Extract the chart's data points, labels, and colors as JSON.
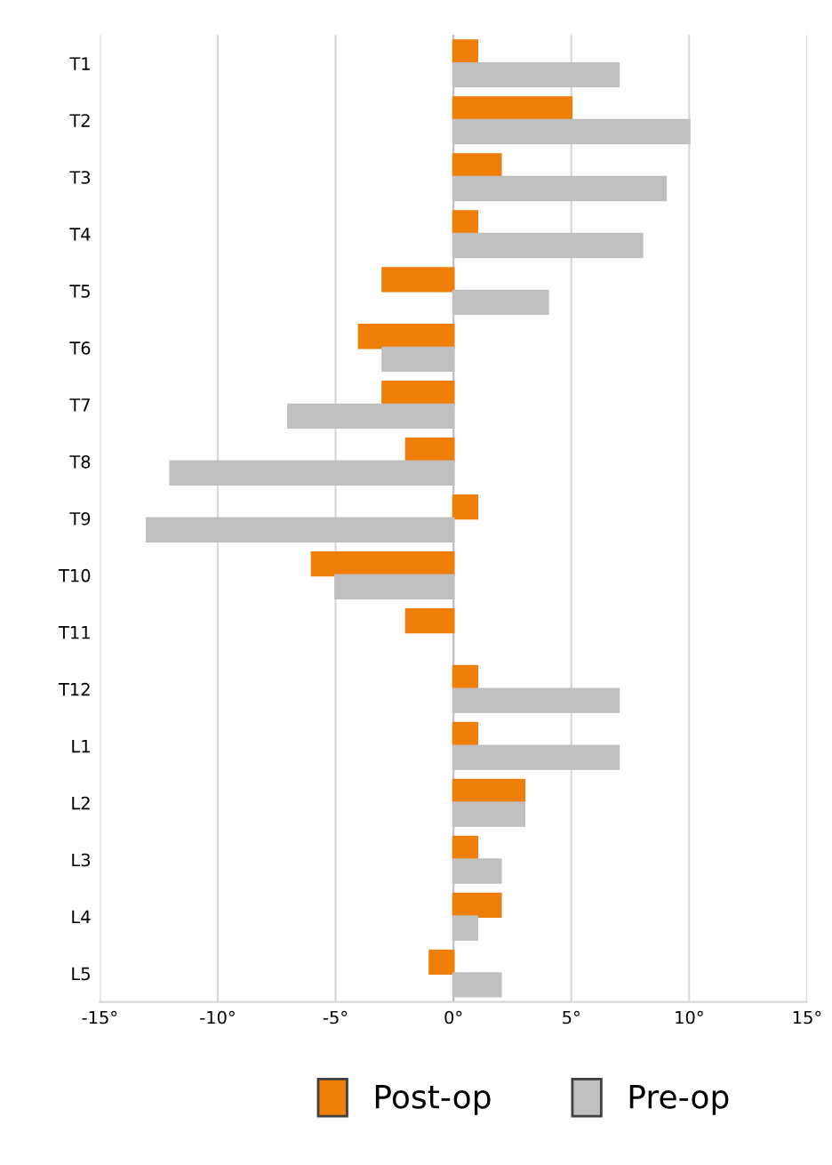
{
  "chart_data": {
    "type": "bar",
    "orientation": "horizontal",
    "categories": [
      "T1",
      "T2",
      "T3",
      "T4",
      "T5",
      "T6",
      "T7",
      "T8",
      "T9",
      "T10",
      "T11",
      "T12",
      "L1",
      "L2",
      "L3",
      "L4",
      "L5"
    ],
    "series": [
      {
        "name": "Post-op",
        "color": "#f07f09",
        "values": [
          1,
          5,
          2,
          1,
          -3,
          -4,
          -3,
          -2,
          1,
          -6,
          -2,
          1,
          1,
          3,
          1,
          2,
          -1
        ]
      },
      {
        "name": "Pre-op",
        "color": "#bfbfbf",
        "values": [
          7,
          10,
          9,
          8,
          4,
          -3,
          -7,
          -12,
          -13,
          -5,
          null,
          7,
          7,
          3,
          2,
          1,
          2
        ]
      }
    ],
    "xlim": [
      -15,
      15
    ],
    "xticks": [
      {
        "value": -15,
        "label": "-15°"
      },
      {
        "value": -10,
        "label": "-10°"
      },
      {
        "value": -5,
        "label": "-5°"
      },
      {
        "value": 0,
        "label": "0°"
      },
      {
        "value": 5,
        "label": "5°"
      },
      {
        "value": 10,
        "label": "10°"
      },
      {
        "value": 15,
        "label": "15°"
      }
    ],
    "grid": "x",
    "legend": "bottom"
  }
}
